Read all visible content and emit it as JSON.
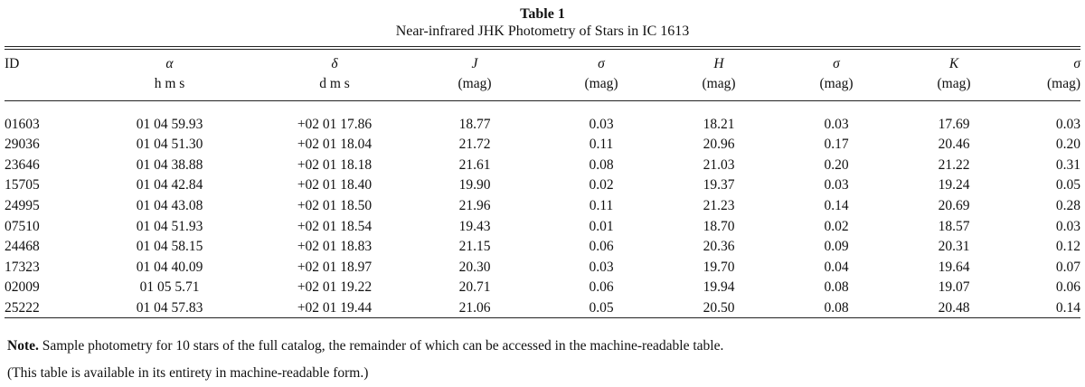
{
  "table": {
    "label": "Table 1",
    "title": "Near-infrared JHK Photometry of Stars in IC 1613",
    "columns": [
      {
        "symbol": "ID",
        "unit": ""
      },
      {
        "symbol": "α",
        "unit": "h m s"
      },
      {
        "symbol": "δ",
        "unit": "d m s"
      },
      {
        "symbol": "J",
        "unit": "(mag)"
      },
      {
        "symbol": "σ",
        "unit": "(mag)"
      },
      {
        "symbol": "H",
        "unit": "(mag)"
      },
      {
        "symbol": "σ",
        "unit": "(mag)"
      },
      {
        "symbol": "K",
        "unit": "(mag)"
      },
      {
        "symbol": "σ",
        "unit": "(mag)"
      }
    ],
    "rows": [
      [
        "01603",
        "01 04 59.93",
        "+02 01 17.86",
        "18.77",
        "0.03",
        "18.21",
        "0.03",
        "17.69",
        "0.03"
      ],
      [
        "29036",
        "01 04 51.30",
        "+02 01 18.04",
        "21.72",
        "0.11",
        "20.96",
        "0.17",
        "20.46",
        "0.20"
      ],
      [
        "23646",
        "01 04 38.88",
        "+02 01 18.18",
        "21.61",
        "0.08",
        "21.03",
        "0.20",
        "21.22",
        "0.31"
      ],
      [
        "15705",
        "01 04 42.84",
        "+02 01 18.40",
        "19.90",
        "0.02",
        "19.37",
        "0.03",
        "19.24",
        "0.05"
      ],
      [
        "24995",
        "01 04 43.08",
        "+02 01 18.50",
        "21.96",
        "0.11",
        "21.23",
        "0.14",
        "20.69",
        "0.28"
      ],
      [
        "07510",
        "01 04 51.93",
        "+02 01 18.54",
        "19.43",
        "0.01",
        "18.70",
        "0.02",
        "18.57",
        "0.03"
      ],
      [
        "24468",
        "01 04 58.15",
        "+02 01 18.83",
        "21.15",
        "0.06",
        "20.36",
        "0.09",
        "20.31",
        "0.12"
      ],
      [
        "17323",
        "01 04 40.09",
        "+02 01 18.97",
        "20.30",
        "0.03",
        "19.70",
        "0.04",
        "19.64",
        "0.07"
      ],
      [
        "02009",
        "01 05 5.71",
        "+02 01 19.22",
        "20.71",
        "0.06",
        "19.94",
        "0.08",
        "19.07",
        "0.06"
      ],
      [
        "25222",
        "01 04 57.83",
        "+02 01 19.44",
        "21.06",
        "0.05",
        "20.50",
        "0.08",
        "20.48",
        "0.14"
      ]
    ]
  },
  "notes": {
    "note_label": "Note.",
    "note_text": " Sample photometry for 10 stars of the full catalog, the remainder of which can be accessed in the machine-readable table.",
    "availability": "(This table is available in its entirety in machine-readable form.)"
  }
}
